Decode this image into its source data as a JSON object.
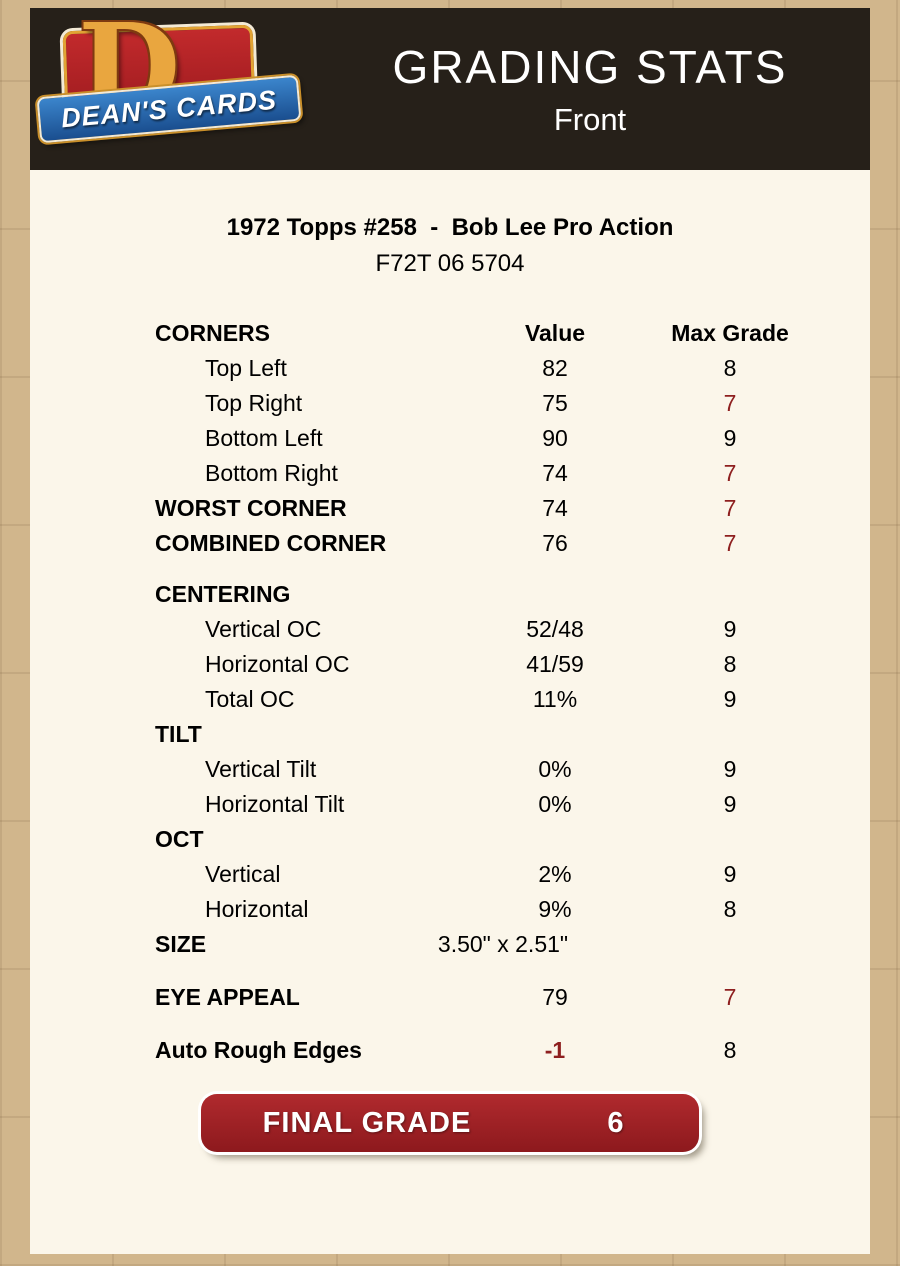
{
  "header": {
    "title": "GRADING STATS",
    "subtitle": "Front",
    "logo_text": "DEAN'S CARDS",
    "logo_letter": "D"
  },
  "card": {
    "title": "1972 Topps #258  -  Bob Lee Pro Action",
    "code": "F72T 06 5704"
  },
  "colors": {
    "page_background": "#c6a77a",
    "header_background": "#262019",
    "panel_background": "#fbf6ea",
    "accent_red": "#8e1f1f",
    "final_grade_background": "#9e2023",
    "logo_red": "#b02225",
    "logo_gold": "#e9a63f",
    "logo_blue": "#1a4e8f"
  },
  "table": {
    "rows": [
      {
        "label": "CORNERS",
        "value": "Value",
        "max": "Max Grade",
        "bold": true,
        "head": true
      },
      {
        "label": "Top Left",
        "value": "82",
        "max": "8",
        "indent": true
      },
      {
        "label": "Top Right",
        "value": "75",
        "max": "7",
        "indent": true,
        "mred": true
      },
      {
        "label": "Bottom Left",
        "value": "90",
        "max": "9",
        "indent": true
      },
      {
        "label": "Bottom Right",
        "value": "74",
        "max": "7",
        "indent": true,
        "mred": true
      },
      {
        "label": "WORST CORNER",
        "value": "74",
        "max": "7",
        "bold": true,
        "mred": true
      },
      {
        "label": "COMBINED CORNER",
        "value": "76",
        "max": "7",
        "bold": true,
        "mred": true
      },
      {
        "spacer": 16
      },
      {
        "label": "CENTERING",
        "value": "",
        "max": "",
        "bold": true
      },
      {
        "label": "Vertical OC",
        "value": "52/48",
        "max": "9",
        "indent": true
      },
      {
        "label": "Horizontal OC",
        "value": "41/59",
        "max": "8",
        "indent": true
      },
      {
        "label": "Total OC",
        "value": "11%",
        "max": "9",
        "indent": true
      },
      {
        "label": "TILT",
        "value": "",
        "max": "",
        "bold": true
      },
      {
        "label": "Vertical Tilt",
        "value": "0%",
        "max": "9",
        "indent": true
      },
      {
        "label": "Horizontal Tilt",
        "value": "0%",
        "max": "9",
        "indent": true
      },
      {
        "label": "OCT",
        "value": "",
        "max": "",
        "bold": true
      },
      {
        "label": "Vertical",
        "value": "2%",
        "max": "9",
        "indent": true
      },
      {
        "label": "Horizontal",
        "value": "9%",
        "max": "8",
        "indent": true
      },
      {
        "label": "SIZE",
        "value": "3.50\" x 2.51\"",
        "max": "",
        "bold": true,
        "wide": true
      },
      {
        "spacer": 18
      },
      {
        "label": "EYE APPEAL",
        "value": "79",
        "max": "7",
        "bold": true,
        "mred": true
      },
      {
        "spacer": 18
      },
      {
        "label": "Auto Rough Edges",
        "value": "-1",
        "max": "8",
        "bold": true,
        "vred": true,
        "vbold": true
      }
    ]
  },
  "final": {
    "label": "FINAL GRADE",
    "value": "6"
  }
}
